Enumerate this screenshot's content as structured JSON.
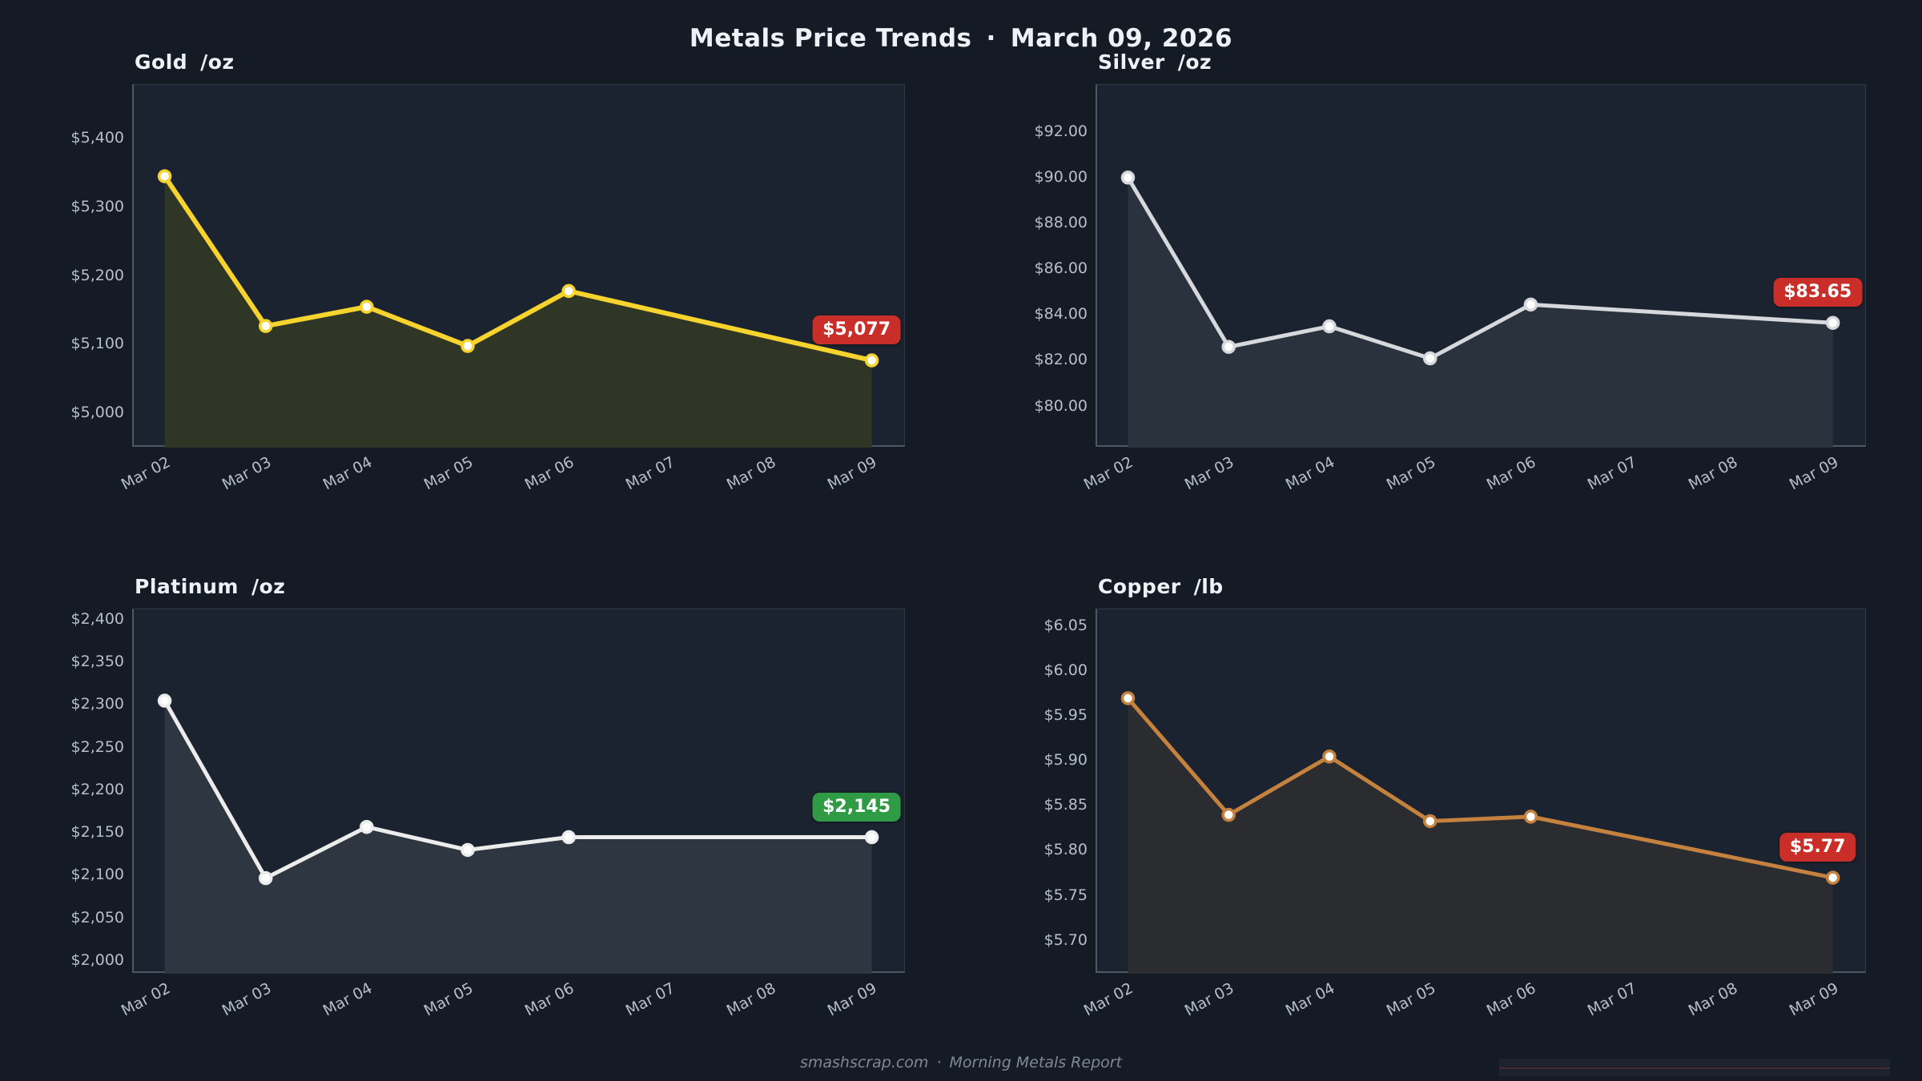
{
  "header": {
    "title_left": "Metals Price Trends",
    "separator": "·",
    "title_date": "March 09, 2026"
  },
  "footer": {
    "site": "smashscrap.com",
    "separator": "·",
    "label": "Morning Metals Report"
  },
  "colors": {
    "page_background": "#141b25",
    "plot_background": "#1b2330",
    "axis_label": "#b6bfc9",
    "title_text": "#eef2f6",
    "badge_down": "#c92f28",
    "badge_flat_up": "#2f9c45"
  },
  "chart_data": [
    {
      "type": "area",
      "title": "Gold",
      "unit": "/oz",
      "x_tick_labels": [
        "Mar 02",
        "Mar 03",
        "Mar 04",
        "Mar 05",
        "Mar 06",
        "Mar 07",
        "Mar 08",
        "Mar 09"
      ],
      "x_dates": [
        "Mar 02",
        "Mar 03",
        "Mar 04",
        "Mar 05",
        "Mar 06",
        "Mar 09"
      ],
      "x_indices": [
        0,
        1,
        2,
        3,
        4,
        7
      ],
      "values": [
        5345,
        5127,
        5155,
        5098,
        5178,
        5077
      ],
      "y_ticks": {
        "labels": [
          "$5,400",
          "$5,300",
          "$5,200",
          "$5,100",
          "$5,000"
        ],
        "values": [
          5400,
          5300,
          5200,
          5100,
          5000
        ]
      },
      "ylim": [
        4950,
        5478
      ],
      "line_color": "#f6d32d",
      "fill_color": "#303626",
      "line_width": 6,
      "badge": {
        "label": "$5,077",
        "color": "#c92f28"
      }
    },
    {
      "type": "area",
      "title": "Silver",
      "unit": "/oz",
      "x_tick_labels": [
        "Mar 02",
        "Mar 03",
        "Mar 04",
        "Mar 05",
        "Mar 06",
        "Mar 07",
        "Mar 08",
        "Mar 09"
      ],
      "x_dates": [
        "Mar 02",
        "Mar 03",
        "Mar 04",
        "Mar 05",
        "Mar 06",
        "Mar 09"
      ],
      "x_indices": [
        0,
        1,
        2,
        3,
        4,
        7
      ],
      "values": [
        90.0,
        82.6,
        83.5,
        82.1,
        84.45,
        83.65
      ],
      "y_ticks": {
        "labels": [
          "$92.00",
          "$90.00",
          "$88.00",
          "$86.00",
          "$84.00",
          "$82.00",
          "$80.00"
        ],
        "values": [
          92,
          90,
          88,
          86,
          84,
          82,
          80
        ]
      },
      "ylim": [
        78.2,
        94.05
      ],
      "line_color": "#d6d9dc",
      "fill_color": "#2a323d",
      "line_width": 5,
      "badge": {
        "label": "$83.65",
        "color": "#c92f28"
      }
    },
    {
      "type": "area",
      "title": "Platinum",
      "unit": "/oz",
      "x_tick_labels": [
        "Mar 02",
        "Mar 03",
        "Mar 04",
        "Mar 05",
        "Mar 06",
        "Mar 07",
        "Mar 08",
        "Mar 09"
      ],
      "x_dates": [
        "Mar 02",
        "Mar 03",
        "Mar 04",
        "Mar 05",
        "Mar 06",
        "Mar 09"
      ],
      "x_indices": [
        0,
        1,
        2,
        3,
        4,
        7
      ],
      "values": [
        2305,
        2097,
        2157,
        2130,
        2145,
        2145
      ],
      "y_ticks": {
        "labels": [
          "$2,400",
          "$2,350",
          "$2,300",
          "$2,250",
          "$2,200",
          "$2,150",
          "$2,100",
          "$2,050",
          "$2,000"
        ],
        "values": [
          2400,
          2350,
          2300,
          2250,
          2200,
          2150,
          2100,
          2050,
          2000
        ]
      },
      "ylim": [
        1985,
        2412
      ],
      "line_color": "#ececec",
      "fill_color": "#2d3641",
      "line_width": 5,
      "badge": {
        "label": "$2,145",
        "color": "#2f9c45"
      }
    },
    {
      "type": "area",
      "title": "Copper",
      "unit": "/lb",
      "x_tick_labels": [
        "Mar 02",
        "Mar 03",
        "Mar 04",
        "Mar 05",
        "Mar 06",
        "Mar 07",
        "Mar 08",
        "Mar 09"
      ],
      "x_dates": [
        "Mar 02",
        "Mar 03",
        "Mar 04",
        "Mar 05",
        "Mar 06",
        "Mar 09"
      ],
      "x_indices": [
        0,
        1,
        2,
        3,
        4,
        7
      ],
      "values": [
        5.97,
        5.84,
        5.905,
        5.833,
        5.838,
        5.77
      ],
      "y_ticks": {
        "labels": [
          "$6.05",
          "$6.00",
          "$5.95",
          "$5.90",
          "$5.85",
          "$5.80",
          "$5.75",
          "$5.70"
        ],
        "values": [
          6.05,
          6.0,
          5.95,
          5.9,
          5.85,
          5.8,
          5.75,
          5.7
        ]
      },
      "ylim": [
        5.663,
        6.069
      ],
      "line_color": "#c5813e",
      "fill_color": "#2b2c2f",
      "line_width": 5,
      "badge": {
        "label": "$5.77",
        "color": "#c92f28"
      }
    }
  ]
}
